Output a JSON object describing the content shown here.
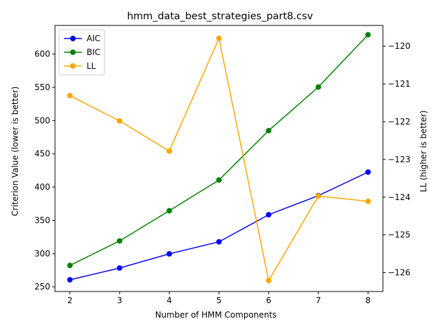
{
  "chart_data": {
    "type": "line",
    "title": "hmm_data_best_strategies_part8.csv",
    "xlabel": "Number of HMM Components",
    "ylabel": "Criterion Value (lower is better)",
    "y2label": "LL (higher is better)",
    "x": [
      2,
      3,
      4,
      5,
      6,
      7,
      8
    ],
    "xlim": [
      1.7,
      8.3
    ],
    "ylim": [
      243,
      643
    ],
    "y2lim": [
      -126.5,
      -119.45
    ],
    "xticks": [
      "2",
      "3",
      "4",
      "5",
      "6",
      "7",
      "8"
    ],
    "yticks": [
      250,
      300,
      350,
      400,
      450,
      500,
      550,
      600
    ],
    "y2ticks": [
      -126,
      -125,
      -124,
      -123,
      -122,
      -121,
      -120
    ],
    "grid": false,
    "legend": "top-left",
    "series": [
      {
        "name": "AIC",
        "axis": "left",
        "color": "#0000ff",
        "values": [
          260.6,
          278.3,
          299.6,
          317.7,
          358.4,
          387.1,
          422.5
        ]
      },
      {
        "name": "BIC",
        "axis": "left",
        "color": "#008000",
        "values": [
          282.2,
          319.0,
          364.4,
          410.6,
          484.9,
          550.4,
          629.0
        ]
      },
      {
        "name": "LL",
        "axis": "right",
        "color": "#ffa500",
        "values": [
          -121.31,
          -121.98,
          -122.78,
          -119.79,
          -126.21,
          -123.97,
          -124.11
        ]
      }
    ]
  }
}
